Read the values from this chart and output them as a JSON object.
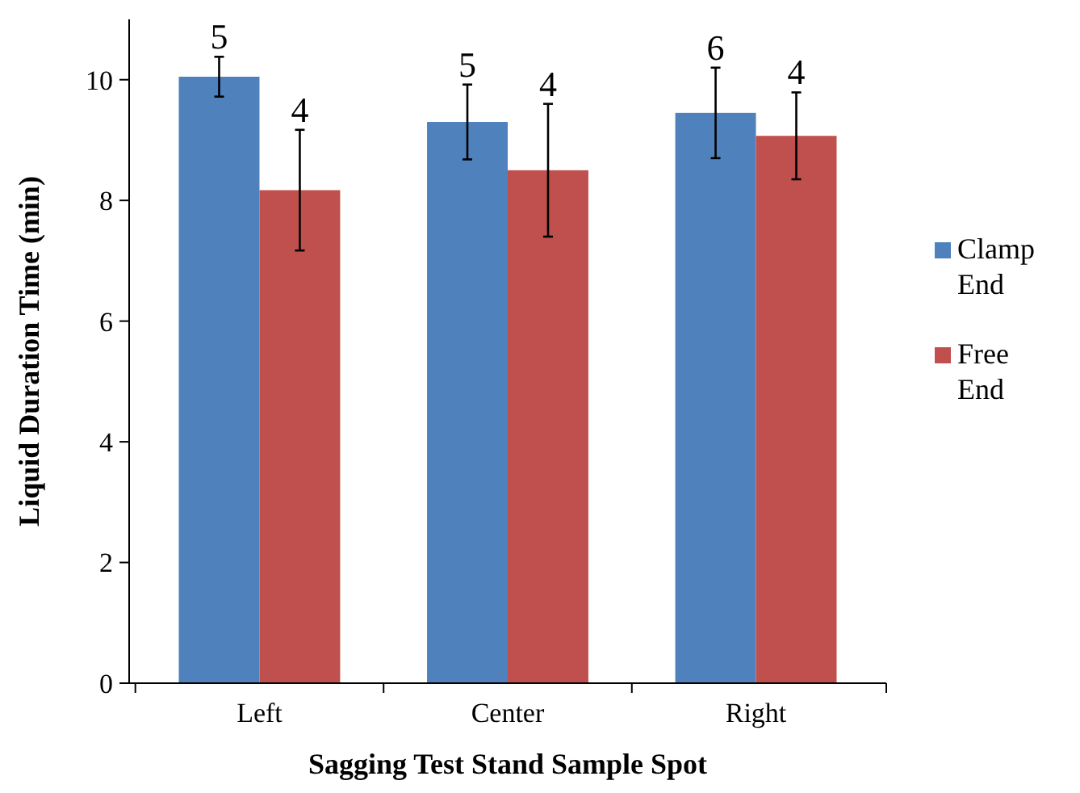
{
  "chart_data": {
    "type": "bar",
    "xlabel": "Sagging Test Stand Sample Spot",
    "ylabel": "Liquid Duration Time (min)",
    "categories": [
      "Left",
      "Center",
      "Right"
    ],
    "ylim": [
      0,
      11
    ],
    "yticks": [
      0,
      2,
      4,
      6,
      8,
      10
    ],
    "grid": false,
    "legend": "right",
    "series": [
      {
        "name": "Clamp End",
        "color": "#4f81bd",
        "values": [
          10.05,
          9.3,
          9.45
        ],
        "errors": [
          0.33,
          0.62,
          0.75
        ]
      },
      {
        "name": "Free End",
        "color": "#c0504d",
        "values": [
          8.17,
          8.5,
          9.07
        ],
        "errors": [
          1.0,
          1.1,
          0.72
        ]
      }
    ],
    "annotations": [
      "5",
      "4",
      "5",
      "4",
      "6",
      "4"
    ]
  }
}
